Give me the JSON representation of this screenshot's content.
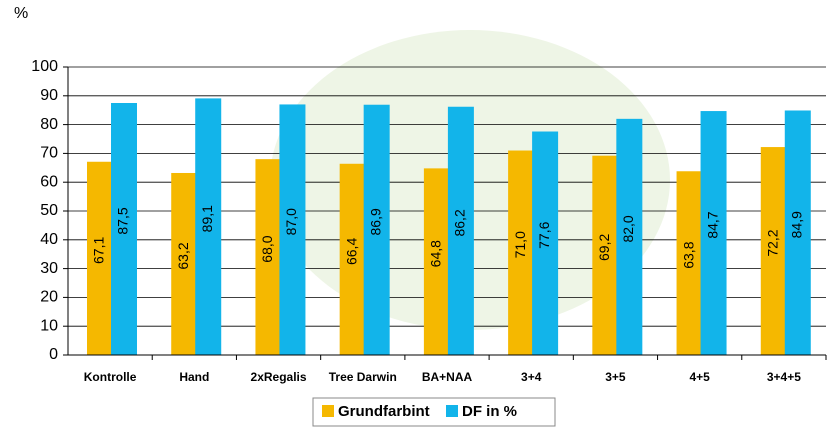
{
  "chart_data": {
    "type": "bar",
    "y_label": "%",
    "categories": [
      "Kontrolle",
      "Hand",
      "2xRegalis",
      "Tree Darwin",
      "BA+NAA",
      "3+4",
      "3+5",
      "4+5",
      "3+4+5"
    ],
    "series": [
      {
        "name": "Grundfarbint",
        "color": "#f5b800",
        "values": [
          67.1,
          63.2,
          68.0,
          66.4,
          64.8,
          71.0,
          69.2,
          63.8,
          72.2
        ],
        "value_labels": [
          "67,1",
          "63,2",
          "68,0",
          "66,4",
          "64,8",
          "71,0",
          "69,2",
          "63,8",
          "72,2"
        ]
      },
      {
        "name": "DF in %",
        "color": "#12b4ea",
        "values": [
          87.5,
          89.1,
          87.0,
          86.9,
          86.2,
          77.6,
          82.0,
          84.7,
          84.9
        ],
        "value_labels": [
          "87,5",
          "89,1",
          "87,0",
          "86,9",
          "86,2",
          "77,6",
          "82,0",
          "84,7",
          "84,9"
        ]
      }
    ],
    "ylim": [
      0,
      100
    ],
    "yticks": [
      0,
      10,
      20,
      30,
      40,
      50,
      60,
      70,
      80,
      90,
      100
    ],
    "grid": true
  }
}
